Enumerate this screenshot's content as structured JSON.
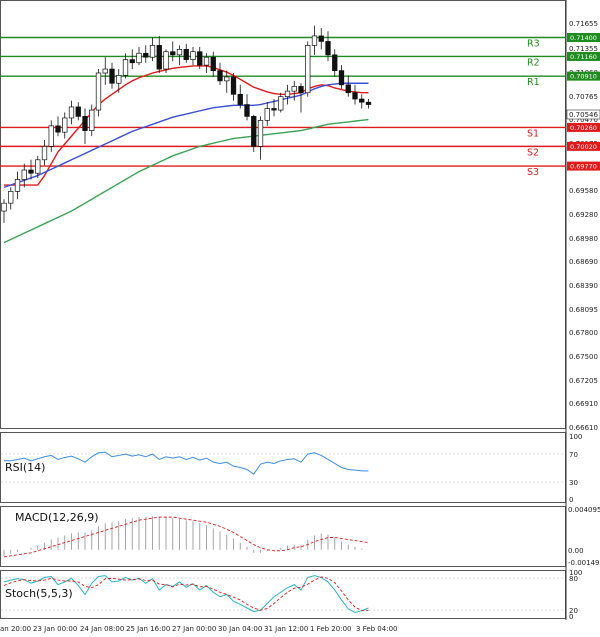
{
  "chart_data": {
    "type": "candlestick",
    "price_axis": {
      "ylim": [
        0.6645,
        0.7185
      ],
      "ticks": [
        "0.71655",
        "0.71060",
        "0.70765",
        "0.70470",
        "0.70175",
        "0.69875",
        "0.69580",
        "0.69280",
        "0.68980",
        "0.68690",
        "0.68390",
        "0.68095",
        "0.67800",
        "0.67500",
        "0.67205",
        "0.66910",
        "0.66610"
      ],
      "current": "0.70546",
      "tag_r3_ghost": "0.71355"
    },
    "time_axis": {
      "labels": [
        "an 20:00",
        "23 Jan 00:00",
        "24 Jan 08:00",
        "25 Jan 16:00",
        "27 Jan 00:00",
        "30 Jan 04:00",
        "31 Jan 12:00",
        "1 Feb 20:00",
        "3 Feb 04:00"
      ]
    },
    "levels": [
      {
        "name": "R3",
        "value": 0.714,
        "label": "0.71400",
        "color": "#1e8c1e"
      },
      {
        "name": "R2",
        "value": 0.7116,
        "label": "0.71160",
        "color": "#1e8c1e"
      },
      {
        "name": "R1",
        "value": 0.7091,
        "label": "0.70910",
        "color": "#1e8c1e"
      },
      {
        "name": "S1",
        "value": 0.7026,
        "label": "0.70260",
        "color": "#e01b1b"
      },
      {
        "name": "S2",
        "value": 0.7002,
        "label": "0.70020",
        "color": "#e01b1b"
      },
      {
        "name": "S3",
        "value": 0.6977,
        "label": "0.69770",
        "color": "#e01b1b"
      }
    ],
    "candles": [
      [
        0.692,
        0.6935,
        0.6905,
        0.693
      ],
      [
        0.693,
        0.695,
        0.6922,
        0.6945
      ],
      [
        0.6945,
        0.697,
        0.6935,
        0.696
      ],
      [
        0.696,
        0.698,
        0.695,
        0.6972
      ],
      [
        0.6972,
        0.6985,
        0.696,
        0.6968
      ],
      [
        0.6968,
        0.699,
        0.6962,
        0.6985
      ],
      [
        0.6985,
        0.701,
        0.6978,
        0.7002
      ],
      [
        0.7002,
        0.7035,
        0.6995,
        0.7028
      ],
      [
        0.7028,
        0.704,
        0.7015,
        0.702
      ],
      [
        0.702,
        0.7045,
        0.7012,
        0.7038
      ],
      [
        0.7038,
        0.706,
        0.703,
        0.7052
      ],
      [
        0.7052,
        0.7058,
        0.7035,
        0.704
      ],
      [
        0.704,
        0.705,
        0.7005,
        0.7022
      ],
      [
        0.7022,
        0.7055,
        0.7015,
        0.7048
      ],
      [
        0.7048,
        0.71,
        0.704,
        0.7095
      ],
      [
        0.7095,
        0.7115,
        0.708,
        0.71
      ],
      [
        0.71,
        0.7108,
        0.7075,
        0.7082
      ],
      [
        0.7082,
        0.71,
        0.707,
        0.7092
      ],
      [
        0.7092,
        0.712,
        0.7088,
        0.7112
      ],
      [
        0.7112,
        0.7125,
        0.71,
        0.7108
      ],
      [
        0.7108,
        0.7128,
        0.7105,
        0.712
      ],
      [
        0.712,
        0.713,
        0.7108,
        0.7115
      ],
      [
        0.7115,
        0.714,
        0.711,
        0.713
      ],
      [
        0.713,
        0.7142,
        0.7095,
        0.71
      ],
      [
        0.71,
        0.7125,
        0.7095,
        0.7122
      ],
      [
        0.7122,
        0.7135,
        0.711,
        0.7118
      ],
      [
        0.7118,
        0.713,
        0.7105,
        0.7125
      ],
      [
        0.7125,
        0.7132,
        0.7108,
        0.7112
      ],
      [
        0.7112,
        0.7128,
        0.7105,
        0.7122
      ],
      [
        0.7122,
        0.7128,
        0.71,
        0.7105
      ],
      [
        0.7105,
        0.712,
        0.7095,
        0.7115
      ],
      [
        0.7115,
        0.7122,
        0.709,
        0.7098
      ],
      [
        0.7098,
        0.7108,
        0.708,
        0.7085
      ],
      [
        0.7085,
        0.7098,
        0.707,
        0.709
      ],
      [
        0.709,
        0.7095,
        0.706,
        0.7068
      ],
      [
        0.7068,
        0.708,
        0.705,
        0.7055
      ],
      [
        0.7055,
        0.7068,
        0.7035,
        0.704
      ],
      [
        0.704,
        0.7042,
        0.6995,
        0.7002
      ],
      [
        0.7002,
        0.704,
        0.6985,
        0.7035
      ],
      [
        0.7035,
        0.7058,
        0.7028,
        0.705
      ],
      [
        0.705,
        0.7062,
        0.704,
        0.7048
      ],
      [
        0.7048,
        0.707,
        0.7045,
        0.7065
      ],
      [
        0.7065,
        0.708,
        0.7055,
        0.7072
      ],
      [
        0.7072,
        0.7085,
        0.706,
        0.7078
      ],
      [
        0.7078,
        0.7082,
        0.7045,
        0.707
      ],
      [
        0.707,
        0.7135,
        0.7065,
        0.713
      ],
      [
        0.713,
        0.7155,
        0.7118,
        0.7142
      ],
      [
        0.7142,
        0.7152,
        0.7125,
        0.7135
      ],
      [
        0.7135,
        0.7148,
        0.711,
        0.7118
      ],
      [
        0.7118,
        0.7125,
        0.709,
        0.7098
      ],
      [
        0.7098,
        0.7105,
        0.7075,
        0.708
      ],
      [
        0.708,
        0.7092,
        0.7065,
        0.707
      ],
      [
        0.707,
        0.708,
        0.7055,
        0.7062
      ],
      [
        0.7062,
        0.7068,
        0.705,
        0.7058
      ],
      [
        0.7058,
        0.7062,
        0.705,
        0.7055
      ]
    ],
    "moving_averages": [
      {
        "color": "#e01b1b",
        "values": [
          0.6953,
          0.6953,
          0.6953,
          0.6953,
          0.6953,
          0.6953,
          0.6965,
          0.698,
          0.6995,
          0.7005,
          0.7015,
          0.7025,
          0.7035,
          0.7045,
          0.7055,
          0.7062,
          0.7068,
          0.7074,
          0.708,
          0.7085,
          0.7089,
          0.7092,
          0.7095,
          0.7097,
          0.7099,
          0.7101,
          0.7102,
          0.7103,
          0.7104,
          0.7104,
          0.7104,
          0.7102,
          0.7099,
          0.7096,
          0.7092,
          0.7087,
          0.7082,
          0.7077,
          0.7074,
          0.7071,
          0.7069,
          0.7068,
          0.7068,
          0.7069,
          0.707,
          0.7075,
          0.7078,
          0.708,
          0.7079,
          0.7076,
          0.7074,
          0.7072,
          0.7071,
          0.707,
          0.707
        ]
      },
      {
        "color": "#3b4fd6",
        "values": [
          0.695,
          0.6953,
          0.6956,
          0.6959,
          0.6962,
          0.6965,
          0.6969,
          0.6973,
          0.6977,
          0.6981,
          0.6985,
          0.6989,
          0.6993,
          0.6997,
          0.7001,
          0.7005,
          0.7009,
          0.7013,
          0.7017,
          0.7021,
          0.7024,
          0.7027,
          0.703,
          0.7033,
          0.7036,
          0.7039,
          0.7041,
          0.7043,
          0.7045,
          0.7047,
          0.7049,
          0.7051,
          0.7052,
          0.7053,
          0.7054,
          0.7054,
          0.7054,
          0.7054,
          0.7055,
          0.7057,
          0.7059,
          0.7061,
          0.7063,
          0.7065,
          0.7067,
          0.7071,
          0.7075,
          0.7078,
          0.708,
          0.7081,
          0.7082,
          0.7082,
          0.7082,
          0.7082,
          0.7082
        ]
      },
      {
        "color": "#3aa355",
        "values": [
          0.688,
          0.6884,
          0.6888,
          0.6892,
          0.6896,
          0.69,
          0.6904,
          0.6908,
          0.6912,
          0.6916,
          0.692,
          0.6925,
          0.693,
          0.6935,
          0.694,
          0.6945,
          0.695,
          0.6955,
          0.696,
          0.6965,
          0.697,
          0.6974,
          0.6978,
          0.6982,
          0.6986,
          0.699,
          0.6993,
          0.6996,
          0.6999,
          0.7002,
          0.7004,
          0.7006,
          0.7008,
          0.701,
          0.7012,
          0.7013,
          0.7014,
          0.7015,
          0.7016,
          0.7017,
          0.7018,
          0.7019,
          0.702,
          0.7021,
          0.7022,
          0.7024,
          0.7026,
          0.7028,
          0.703,
          0.7031,
          0.7032,
          0.7033,
          0.7034,
          0.7035,
          0.7036
        ]
      }
    ],
    "rsi": {
      "name": "RSI(14)",
      "ticks": [
        "100",
        "70",
        "30",
        "0"
      ],
      "ylim": [
        0,
        100
      ],
      "values": [
        60,
        60,
        62,
        64,
        60,
        63,
        66,
        68,
        62,
        65,
        67,
        63,
        58,
        66,
        72,
        73,
        66,
        68,
        70,
        67,
        69,
        66,
        70,
        62,
        66,
        64,
        66,
        62,
        65,
        61,
        64,
        58,
        56,
        58,
        52,
        50,
        47,
        40,
        55,
        58,
        56,
        60,
        62,
        63,
        58,
        70,
        72,
        68,
        62,
        56,
        50,
        47,
        46,
        45,
        45
      ]
    },
    "macd": {
      "name": "MACD(12,26,9)",
      "ticks": [
        "0.004095",
        "0.00",
        "-0.001497"
      ],
      "ylim": [
        -0.001497,
        0.004095
      ],
      "hist": [
        -0.0006,
        -0.0004,
        -0.0002,
        0.0,
        0.0002,
        0.0004,
        0.0007,
        0.001,
        0.0012,
        0.0014,
        0.0016,
        0.0017,
        0.0017,
        0.0019,
        0.0023,
        0.0026,
        0.0027,
        0.0028,
        0.003,
        0.0031,
        0.0032,
        0.0032,
        0.0033,
        0.0032,
        0.0032,
        0.0031,
        0.003,
        0.0029,
        0.0028,
        0.0026,
        0.0024,
        0.0021,
        0.0018,
        0.0015,
        0.0011,
        0.0007,
        0.0003,
        -0.0003,
        -0.0003,
        -0.0001,
        0.0,
        0.0002,
        0.0004,
        0.0005,
        0.0005,
        0.001,
        0.0014,
        0.0016,
        0.0015,
        0.0012,
        0.0008,
        0.0005,
        0.0003,
        0.0001,
        0.0
      ],
      "signal": [
        -0.0007,
        -0.0006,
        -0.0005,
        -0.0004,
        -0.0003,
        -0.0001,
        0.0001,
        0.0003,
        0.0005,
        0.0007,
        0.0009,
        0.0011,
        0.0013,
        0.0015,
        0.0017,
        0.0019,
        0.0021,
        0.0023,
        0.0025,
        0.0027,
        0.0029,
        0.003,
        0.0031,
        0.0032,
        0.0032,
        0.0032,
        0.0031,
        0.003,
        0.0029,
        0.0028,
        0.0027,
        0.0025,
        0.0023,
        0.002,
        0.0017,
        0.0013,
        0.0009,
        0.0005,
        0.0002,
        0.0,
        -0.0001,
        -0.0001,
        0.0,
        0.0002,
        0.0003,
        0.0005,
        0.0008,
        0.001,
        0.0012,
        0.0012,
        0.0011,
        0.001,
        0.0009,
        0.0008,
        0.0007
      ]
    },
    "stoch": {
      "name": "Stoch(5,5,3)",
      "ticks": [
        "100",
        "80",
        "20",
        "0"
      ],
      "ylim": [
        0,
        100
      ],
      "k": [
        78,
        82,
        85,
        83,
        75,
        80,
        88,
        90,
        72,
        78,
        86,
        70,
        50,
        75,
        90,
        92,
        78,
        80,
        88,
        82,
        86,
        75,
        85,
        60,
        72,
        68,
        78,
        66,
        74,
        60,
        70,
        55,
        45,
        50,
        35,
        28,
        20,
        12,
        15,
        30,
        45,
        55,
        65,
        72,
        60,
        88,
        92,
        88,
        78,
        60,
        38,
        18,
        10,
        14,
        20
      ],
      "d": [
        70,
        76,
        80,
        83,
        81,
        80,
        82,
        86,
        82,
        80,
        80,
        78,
        68,
        65,
        72,
        85,
        86,
        84,
        82,
        83,
        85,
        81,
        82,
        73,
        72,
        67,
        73,
        71,
        73,
        67,
        68,
        62,
        55,
        50,
        44,
        38,
        28,
        20,
        15,
        19,
        30,
        43,
        55,
        64,
        66,
        73,
        82,
        89,
        86,
        76,
        58,
        38,
        22,
        14,
        15
      ]
    }
  }
}
